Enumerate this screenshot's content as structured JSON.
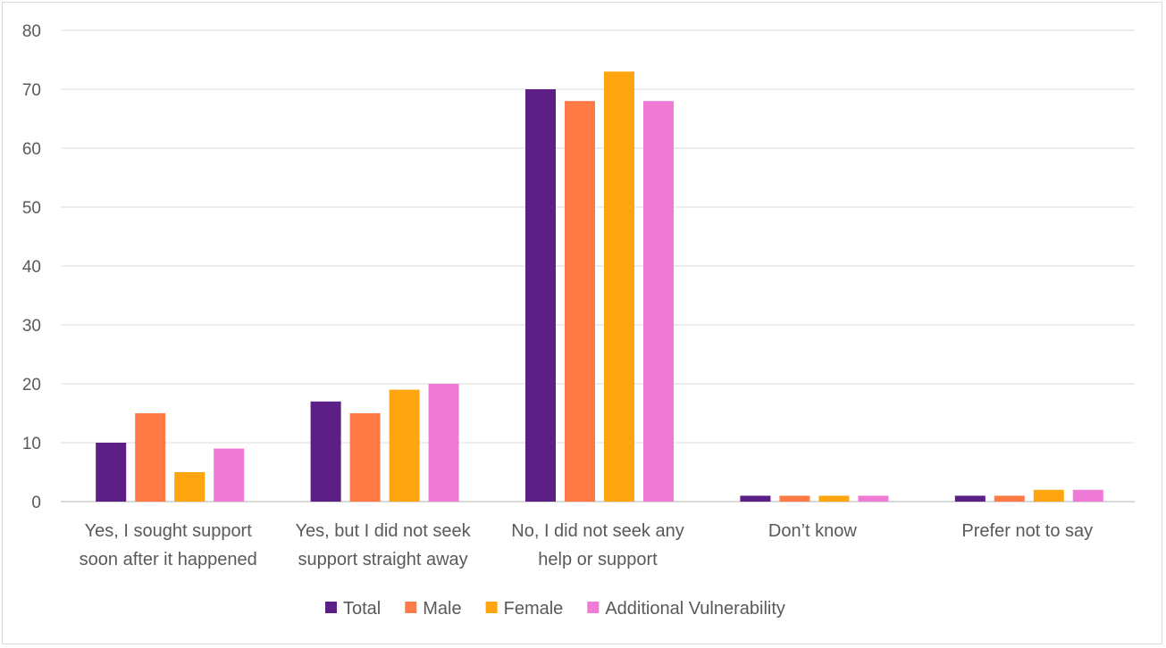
{
  "chart_data": {
    "type": "bar",
    "title": "",
    "xlabel": "",
    "ylabel": "",
    "ylim": [
      0,
      80
    ],
    "yticks": [
      0,
      10,
      20,
      30,
      40,
      50,
      60,
      70,
      80
    ],
    "grid": true,
    "legend_position": "bottom",
    "categories": [
      [
        "Yes, I sought support",
        "soon after it happened"
      ],
      [
        "Yes, but I did not seek",
        "support straight away"
      ],
      [
        "No, I did not seek any",
        "help or support"
      ],
      [
        "Don’t know"
      ],
      [
        "Prefer not to say"
      ]
    ],
    "series": [
      {
        "name": "Total",
        "color": "#5B1F85",
        "values": [
          10,
          17,
          70,
          1,
          1
        ]
      },
      {
        "name": "Male",
        "color": "#FF7A45",
        "values": [
          15,
          15,
          68,
          1,
          1
        ]
      },
      {
        "name": "Female",
        "color": "#FFA50F",
        "values": [
          5,
          19,
          73,
          1,
          2
        ]
      },
      {
        "name": "Additional Vulnerability",
        "color": "#F07BD6",
        "values": [
          9,
          20,
          68,
          1,
          2
        ]
      }
    ]
  }
}
